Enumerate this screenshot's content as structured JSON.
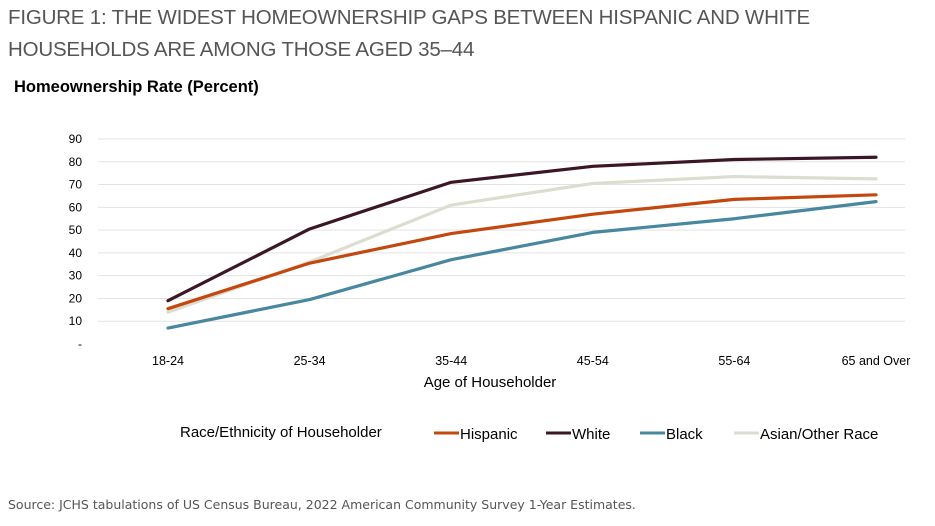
{
  "figure_title": "FIGURE 1: THE WIDEST HOMEOWNERSHIP GAPS BETWEEN HISPANIC AND WHITE HOUSEHOLDS ARE AMONG THOSE AGED 35–44",
  "source": "Source: JCHS tabulations of US Census Bureau, 2022 American Community Survey 1-Year Estimates.",
  "chart_data": {
    "type": "line",
    "title": "Homeownership Rate (Percent)",
    "xlabel": "Age of Householder",
    "ylabel": "",
    "categories": [
      "18-24",
      "25-34",
      "35-44",
      "45-54",
      "55-64",
      "65 and Over"
    ],
    "ylim": [
      0,
      90
    ],
    "yticks": [
      "-",
      "10",
      "20",
      "30",
      "40",
      "50",
      "60",
      "70",
      "80",
      "90"
    ],
    "grid": true,
    "legend_title": "Race/Ethnicity of Householder",
    "legend_position": "bottom",
    "series": [
      {
        "name": "Hispanic",
        "color": "#c4470e",
        "values": [
          15.5,
          35.5,
          48.5,
          57,
          63.5,
          65.5
        ]
      },
      {
        "name": "White",
        "color": "#3b1626",
        "values": [
          19,
          50.5,
          71,
          78,
          81,
          82
        ]
      },
      {
        "name": "Black",
        "color": "#47879f",
        "values": [
          7,
          19.5,
          37,
          49,
          55,
          62.5
        ]
      },
      {
        "name": "Asian/Other Race",
        "color": "#dcdcd0",
        "values": [
          14,
          36,
          61,
          70.5,
          73.5,
          72.5
        ]
      }
    ]
  }
}
